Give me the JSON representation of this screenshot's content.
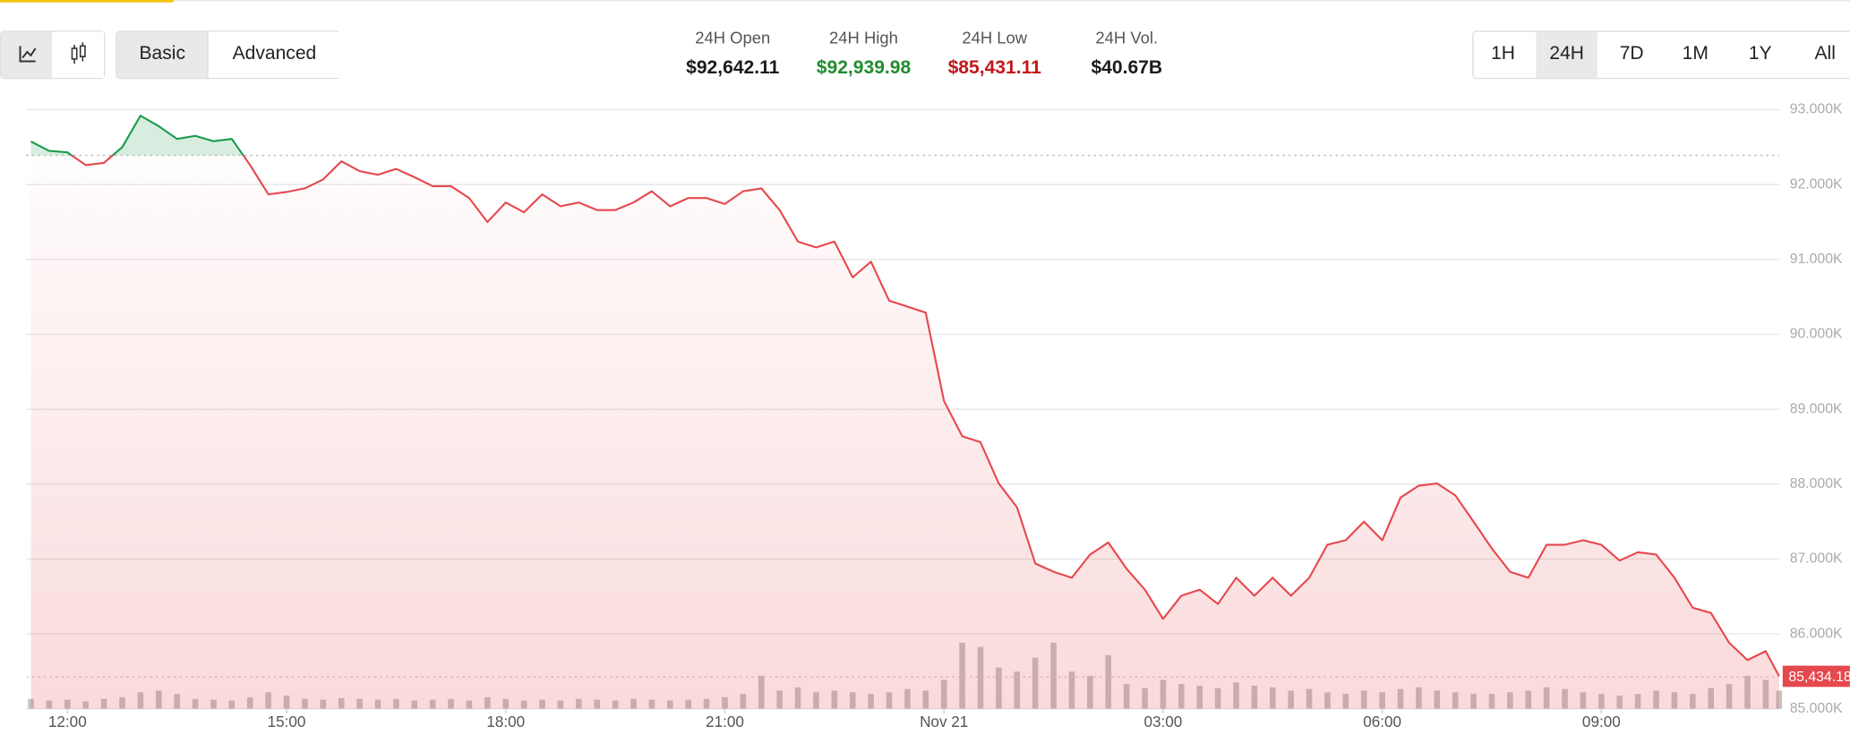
{
  "toolbar": {
    "views": [
      "Basic",
      "Advanced"
    ],
    "selected_view": "Basic",
    "ranges": [
      "1H",
      "24H",
      "7D",
      "1M",
      "1Y",
      "All"
    ],
    "selected_range": "24H"
  },
  "stats": [
    {
      "label": "24H Open",
      "value": "$92,642.11",
      "color": "#1b1b1b"
    },
    {
      "label": "24H High",
      "value": "$92,939.98",
      "color": "#218c2f"
    },
    {
      "label": "24H Low",
      "value": "$85,431.11",
      "color": "#c1171c"
    },
    {
      "label": "24H Vol.",
      "value": "$40.67B",
      "color": "#1b1b1b"
    }
  ],
  "chart_data": {
    "type": "line",
    "x": [
      "Nov 20 11:30",
      "Nov 20 11:45",
      "Nov 20 12:00",
      "Nov 20 12:15",
      "Nov 20 12:30",
      "Nov 20 12:45",
      "Nov 20 13:00",
      "Nov 20 13:15",
      "Nov 20 13:30",
      "Nov 20 13:45",
      "Nov 20 14:00",
      "Nov 20 14:15",
      "Nov 20 14:30",
      "Nov 20 14:45",
      "Nov 20 15:00",
      "Nov 20 15:15",
      "Nov 20 15:30",
      "Nov 20 15:45",
      "Nov 20 16:00",
      "Nov 20 16:15",
      "Nov 20 16:30",
      "Nov 20 16:45",
      "Nov 20 17:00",
      "Nov 20 17:15",
      "Nov 20 17:30",
      "Nov 20 17:45",
      "Nov 20 18:00",
      "Nov 20 18:15",
      "Nov 20 18:30",
      "Nov 20 18:45",
      "Nov 20 19:00",
      "Nov 20 19:15",
      "Nov 20 19:30",
      "Nov 20 19:45",
      "Nov 20 20:00",
      "Nov 20 20:15",
      "Nov 20 20:30",
      "Nov 20 20:45",
      "Nov 20 21:00",
      "Nov 20 21:15",
      "Nov 20 21:30",
      "Nov 20 21:45",
      "Nov 20 22:00",
      "Nov 20 22:15",
      "Nov 20 22:30",
      "Nov 20 22:45",
      "Nov 20 23:00",
      "Nov 20 23:15",
      "Nov 20 23:30",
      "Nov 20 23:45",
      "Nov 21 00:00",
      "Nov 21 00:15",
      "Nov 21 00:30",
      "Nov 21 00:45",
      "Nov 21 01:00",
      "Nov 21 01:15",
      "Nov 21 01:30",
      "Nov 21 01:45",
      "Nov 21 02:00",
      "Nov 21 02:15",
      "Nov 21 02:30",
      "Nov 21 02:45",
      "Nov 21 03:00",
      "Nov 21 03:15",
      "Nov 21 03:30",
      "Nov 21 03:45",
      "Nov 21 04:00",
      "Nov 21 04:15",
      "Nov 21 04:30",
      "Nov 21 04:45",
      "Nov 21 05:00",
      "Nov 21 05:15",
      "Nov 21 05:30",
      "Nov 21 05:45",
      "Nov 21 06:00",
      "Nov 21 06:15",
      "Nov 21 06:30",
      "Nov 21 06:45",
      "Nov 21 07:00",
      "Nov 21 07:15",
      "Nov 21 07:30",
      "Nov 21 07:45",
      "Nov 21 08:00",
      "Nov 21 08:15",
      "Nov 21 08:30",
      "Nov 21 08:45",
      "Nov 21 09:00",
      "Nov 21 09:15",
      "Nov 21 09:30",
      "Nov 21 09:45",
      "Nov 21 10:00",
      "Nov 21 10:15",
      "Nov 21 10:30",
      "Nov 21 10:45",
      "Nov 21 11:00",
      "Nov 21 11:15",
      "Nov 21 11:26"
    ],
    "values": [
      92575,
      92450,
      92430,
      92260,
      92290,
      92500,
      92920,
      92780,
      92610,
      92650,
      92580,
      92610,
      92260,
      91870,
      91900,
      91950,
      92070,
      92310,
      92180,
      92130,
      92210,
      92100,
      91980,
      91980,
      91820,
      91500,
      91760,
      91630,
      91870,
      91710,
      91760,
      91660,
      91660,
      91760,
      91910,
      91710,
      91820,
      91820,
      91740,
      91910,
      91950,
      91660,
      91240,
      91160,
      91240,
      90760,
      90970,
      90450,
      90370,
      90290,
      89110,
      88640,
      88560,
      88010,
      87690,
      86940,
      86830,
      86750,
      87060,
      87220,
      86870,
      86590,
      86200,
      86510,
      86590,
      86400,
      86750,
      86510,
      86750,
      86510,
      86750,
      87190,
      87250,
      87500,
      87250,
      87820,
      87980,
      88010,
      87850,
      87500,
      87140,
      86830,
      86750,
      87190,
      87190,
      87250,
      87190,
      86980,
      87090,
      87060,
      86750,
      86350,
      86280,
      85880,
      85650,
      85770,
      85434.18
    ],
    "volume": [
      12,
      10,
      11,
      9,
      12,
      14,
      20,
      22,
      18,
      12,
      11,
      10,
      14,
      20,
      16,
      12,
      11,
      13,
      12,
      11,
      12,
      10,
      11,
      12,
      10,
      14,
      12,
      10,
      11,
      10,
      12,
      11,
      10,
      12,
      11,
      10,
      11,
      12,
      14,
      18,
      40,
      22,
      26,
      20,
      22,
      20,
      18,
      20,
      24,
      22,
      35,
      80,
      75,
      50,
      45,
      62,
      80,
      45,
      40,
      65,
      30,
      25,
      35,
      30,
      28,
      25,
      32,
      28,
      26,
      22,
      24,
      20,
      18,
      22,
      20,
      24,
      26,
      22,
      20,
      18,
      18,
      20,
      22,
      26,
      24,
      20,
      18,
      16,
      18,
      22,
      20,
      18,
      25,
      30,
      40,
      35,
      22
    ],
    "y2lim": [
      0,
      100
    ],
    "reference": 92390,
    "last_label": "85,434.18",
    "up_color": "#1a9b4b",
    "down_color": "#e5484d",
    "volume_color": "#c4c4c4",
    "xlim": [
      "Nov 20 11:26",
      "Nov 21 11:26"
    ],
    "xticks": [
      {
        "value": "Nov 20 12:00",
        "label": "12:00"
      },
      {
        "value": "Nov 20 15:00",
        "label": "15:00"
      },
      {
        "value": "Nov 20 18:00",
        "label": "18:00"
      },
      {
        "value": "Nov 20 21:00",
        "label": "21:00"
      },
      {
        "value": "Nov 21 00:00",
        "label": "Nov 21"
      },
      {
        "value": "Nov 21 03:00",
        "label": "03:00"
      },
      {
        "value": "Nov 21 06:00",
        "label": "06:00"
      },
      {
        "value": "Nov 21 09:00",
        "label": "09:00"
      }
    ],
    "ylim": [
      85000,
      93000
    ],
    "yticks": [
      {
        "value": 85000,
        "label": "85.000K"
      },
      {
        "value": 86000,
        "label": "86.000K"
      },
      {
        "value": 87000,
        "label": "87.000K"
      },
      {
        "value": 88000,
        "label": "88.000K"
      },
      {
        "value": 89000,
        "label": "89.000K"
      },
      {
        "value": 90000,
        "label": "90.000K"
      },
      {
        "value": 91000,
        "label": "91.000K"
      },
      {
        "value": 92000,
        "label": "92.000K"
      },
      {
        "value": 93000,
        "label": "93.000K"
      }
    ],
    "grid": true
  }
}
